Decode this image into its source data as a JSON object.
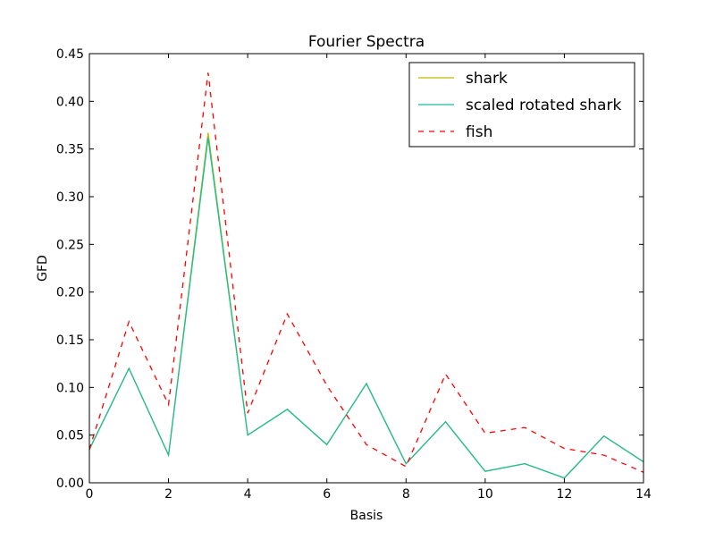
{
  "chart_data": {
    "type": "line",
    "title": "Fourier Spectra",
    "xlabel": "Basis",
    "ylabel": "GFD",
    "xlim": [
      0,
      14
    ],
    "ylim": [
      0,
      0.45
    ],
    "xticks": [
      0,
      2,
      4,
      6,
      8,
      10,
      12,
      14
    ],
    "yticks": [
      0.0,
      0.05,
      0.1,
      0.15,
      0.2,
      0.25,
      0.3,
      0.35,
      0.4,
      0.45
    ],
    "ytick_labels": [
      "0.00",
      "0.05",
      "0.10",
      "0.15",
      "0.20",
      "0.25",
      "0.30",
      "0.35",
      "0.40",
      "0.45"
    ],
    "xtick_labels": [
      "0",
      "2",
      "4",
      "6",
      "8",
      "10",
      "12",
      "14"
    ],
    "grid": false,
    "legend_position": "top-right",
    "x": [
      0,
      1,
      2,
      3,
      4,
      5,
      6,
      7,
      8,
      9,
      10,
      11,
      12,
      13,
      14
    ],
    "series": [
      {
        "name": "shark",
        "color": "#bfbf00",
        "dash": "solid",
        "values": [
          0.035,
          0.12,
          0.029,
          0.367,
          0.05,
          0.077,
          0.04,
          0.104,
          0.02,
          0.064,
          0.012,
          0.02,
          0.005,
          0.049,
          0.022
        ]
      },
      {
        "name": "scaled rotated shark",
        "color": "#1abc9c",
        "dash": "solid",
        "values": [
          0.035,
          0.12,
          0.029,
          0.362,
          0.05,
          0.077,
          0.04,
          0.104,
          0.02,
          0.064,
          0.012,
          0.02,
          0.005,
          0.049,
          0.022
        ]
      },
      {
        "name": "fish",
        "color": "#ff0000",
        "dash": "dashed",
        "values": [
          0.035,
          0.169,
          0.082,
          0.43,
          0.073,
          0.177,
          0.102,
          0.04,
          0.017,
          0.114,
          0.052,
          0.058,
          0.036,
          0.029,
          0.011
        ]
      }
    ]
  }
}
